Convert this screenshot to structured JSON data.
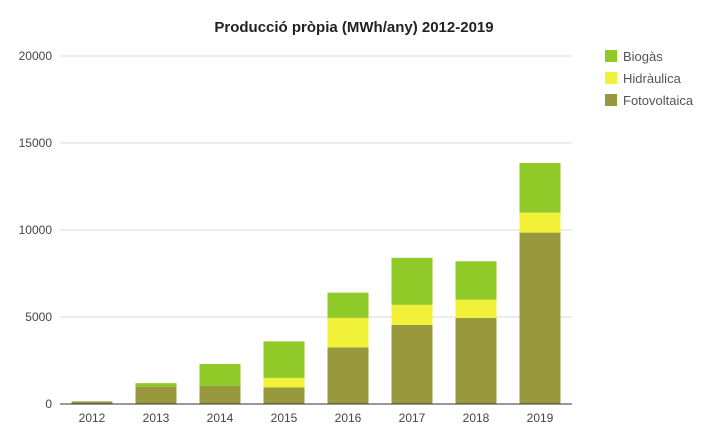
{
  "chart_data": {
    "type": "bar",
    "stacked": true,
    "title": "Producció pròpia (MWh/any) 2012-2019",
    "xlabel": "",
    "ylabel": "",
    "categories": [
      "2012",
      "2013",
      "2014",
      "2015",
      "2016",
      "2017",
      "2018",
      "2019"
    ],
    "series": [
      {
        "name": "Fotovoltaica",
        "color": "#98983c",
        "values": [
          150,
          1000,
          1050,
          950,
          3250,
          4550,
          4950,
          9850
        ]
      },
      {
        "name": "Hidràulica",
        "color": "#f1f13a",
        "values": [
          0,
          0,
          0,
          550,
          1700,
          1150,
          1050,
          1150
        ]
      },
      {
        "name": "Biogàs",
        "color": "#8fca29",
        "values": [
          0,
          200,
          1250,
          2100,
          1450,
          2700,
          2200,
          2850
        ]
      }
    ],
    "ylim": [
      0,
      20000
    ],
    "yticks": [
      "0",
      "5000",
      "10000",
      "15000",
      "20000"
    ],
    "grid": true,
    "legend_position": "right-top"
  }
}
